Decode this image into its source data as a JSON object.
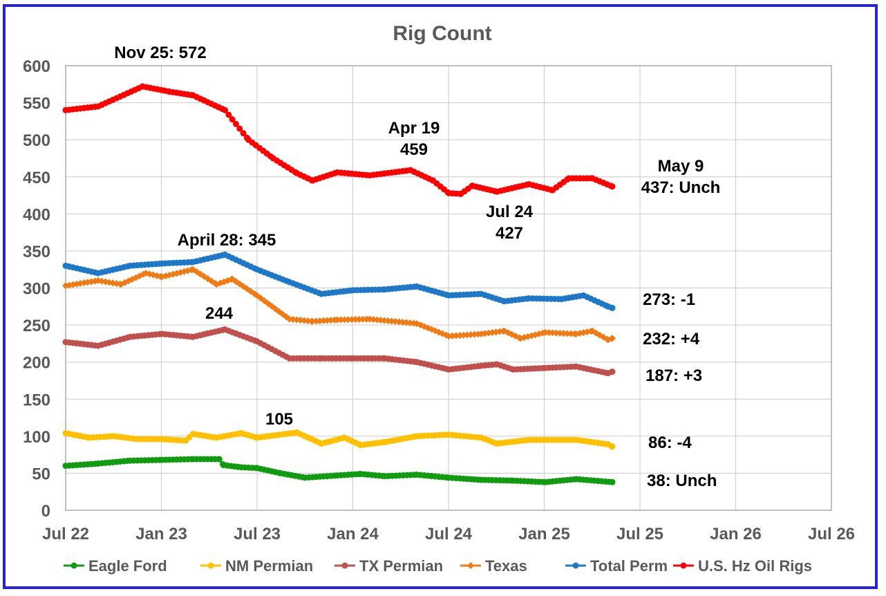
{
  "chart_data": {
    "type": "line",
    "title": "Rig Count",
    "xlabel": "",
    "ylabel": "",
    "x_tick_labels": [
      "Jul 22",
      "Jan 23",
      "Jul 23",
      "Jan 24",
      "Jul 24",
      "Jan 25",
      "Jul 25",
      "Jan 26",
      "Jul 26"
    ],
    "x_range": [
      "2022-07-01",
      "2026-07-01"
    ],
    "ylim": [
      0,
      600
    ],
    "y_ticks": [
      0,
      50,
      100,
      150,
      200,
      250,
      300,
      350,
      400,
      450,
      500,
      550,
      600
    ],
    "grid": true,
    "legend_position": "bottom",
    "series": [
      {
        "name": "Eagle Ford",
        "color": "#119b11",
        "marker": "circle",
        "points": [
          [
            "2022-07-01",
            60
          ],
          [
            "2022-09-01",
            63
          ],
          [
            "2022-11-01",
            67
          ],
          [
            "2023-01-01",
            68
          ],
          [
            "2023-03-01",
            69
          ],
          [
            "2023-04-20",
            69
          ],
          [
            "2023-04-28",
            61
          ],
          [
            "2023-06-01",
            58
          ],
          [
            "2023-07-01",
            57
          ],
          [
            "2023-08-15",
            50
          ],
          [
            "2023-10-01",
            44
          ],
          [
            "2023-12-01",
            47
          ],
          [
            "2024-01-15",
            49
          ],
          [
            "2024-03-01",
            46
          ],
          [
            "2024-05-01",
            48
          ],
          [
            "2024-07-01",
            44
          ],
          [
            "2024-09-01",
            41
          ],
          [
            "2024-11-01",
            40
          ],
          [
            "2025-01-01",
            38
          ],
          [
            "2025-03-01",
            42
          ],
          [
            "2025-05-09",
            38
          ]
        ]
      },
      {
        "name": "NM Permian",
        "color": "#ffc000",
        "marker": "circle",
        "points": [
          [
            "2022-07-01",
            104
          ],
          [
            "2022-08-15",
            98
          ],
          [
            "2022-10-01",
            100
          ],
          [
            "2022-11-15",
            96
          ],
          [
            "2023-01-01",
            96
          ],
          [
            "2023-02-15",
            94
          ],
          [
            "2023-03-01",
            103
          ],
          [
            "2023-04-15",
            98
          ],
          [
            "2023-06-01",
            104
          ],
          [
            "2023-07-01",
            98
          ],
          [
            "2023-09-15",
            105
          ],
          [
            "2023-11-01",
            90
          ],
          [
            "2023-12-15",
            98
          ],
          [
            "2024-01-15",
            88
          ],
          [
            "2024-03-01",
            92
          ],
          [
            "2024-05-01",
            100
          ],
          [
            "2024-07-01",
            102
          ],
          [
            "2024-09-01",
            98
          ],
          [
            "2024-10-01",
            90
          ],
          [
            "2024-12-01",
            95
          ],
          [
            "2025-03-01",
            95
          ],
          [
            "2025-05-01",
            89
          ],
          [
            "2025-05-09",
            86
          ]
        ]
      },
      {
        "name": "TX Permian",
        "color": "#c0504d",
        "marker": "circle",
        "points": [
          [
            "2022-07-01",
            227
          ],
          [
            "2022-09-01",
            222
          ],
          [
            "2022-11-01",
            234
          ],
          [
            "2023-01-01",
            238
          ],
          [
            "2023-03-01",
            234
          ],
          [
            "2023-05-01",
            244
          ],
          [
            "2023-07-01",
            228
          ],
          [
            "2023-09-01",
            205
          ],
          [
            "2023-11-01",
            205
          ],
          [
            "2024-01-01",
            205
          ],
          [
            "2024-03-01",
            205
          ],
          [
            "2024-05-01",
            200
          ],
          [
            "2024-07-01",
            190
          ],
          [
            "2024-09-01",
            195
          ],
          [
            "2024-10-01",
            197
          ],
          [
            "2024-11-01",
            190
          ],
          [
            "2025-01-01",
            192
          ],
          [
            "2025-03-01",
            194
          ],
          [
            "2025-05-01",
            185
          ],
          [
            "2025-05-09",
            187
          ]
        ]
      },
      {
        "name": "Texas",
        "color": "#f07a13",
        "marker": "diamond",
        "points": [
          [
            "2022-07-01",
            303
          ],
          [
            "2022-09-01",
            310
          ],
          [
            "2022-10-15",
            305
          ],
          [
            "2022-12-01",
            320
          ],
          [
            "2023-01-01",
            315
          ],
          [
            "2023-03-01",
            325
          ],
          [
            "2023-04-15",
            305
          ],
          [
            "2023-05-15",
            312
          ],
          [
            "2023-07-01",
            290
          ],
          [
            "2023-09-01",
            258
          ],
          [
            "2023-10-15",
            255
          ],
          [
            "2023-12-01",
            257
          ],
          [
            "2024-02-01",
            258
          ],
          [
            "2024-05-01",
            252
          ],
          [
            "2024-07-01",
            235
          ],
          [
            "2024-09-01",
            238
          ],
          [
            "2024-10-15",
            242
          ],
          [
            "2024-11-15",
            232
          ],
          [
            "2025-01-01",
            240
          ],
          [
            "2025-03-01",
            238
          ],
          [
            "2025-04-01",
            242
          ],
          [
            "2025-05-01",
            230
          ],
          [
            "2025-05-09",
            232
          ]
        ]
      },
      {
        "name": "Total Perm",
        "color": "#1f77c8",
        "marker": "circle",
        "points": [
          [
            "2022-07-01",
            330
          ],
          [
            "2022-09-01",
            320
          ],
          [
            "2022-11-01",
            330
          ],
          [
            "2023-01-01",
            333
          ],
          [
            "2023-03-01",
            335
          ],
          [
            "2023-05-01",
            345
          ],
          [
            "2023-07-01",
            325
          ],
          [
            "2023-09-01",
            308
          ],
          [
            "2023-11-01",
            292
          ],
          [
            "2024-01-01",
            297
          ],
          [
            "2024-03-01",
            298
          ],
          [
            "2024-05-01",
            302
          ],
          [
            "2024-07-01",
            290
          ],
          [
            "2024-09-01",
            292
          ],
          [
            "2024-10-15",
            282
          ],
          [
            "2024-12-01",
            286
          ],
          [
            "2025-02-01",
            285
          ],
          [
            "2025-03-15",
            290
          ],
          [
            "2025-05-01",
            275
          ],
          [
            "2025-05-09",
            273
          ]
        ]
      },
      {
        "name": "U.S. Hz Oil Rigs",
        "color": "#ff0000",
        "marker": "circle",
        "points": [
          [
            "2022-07-01",
            540
          ],
          [
            "2022-09-01",
            545
          ],
          [
            "2022-11-25",
            572
          ],
          [
            "2023-01-15",
            565
          ],
          [
            "2023-03-01",
            560
          ],
          [
            "2023-05-01",
            540
          ],
          [
            "2023-06-15",
            500
          ],
          [
            "2023-08-01",
            475
          ],
          [
            "2023-09-15",
            455
          ],
          [
            "2023-10-15",
            445
          ],
          [
            "2023-12-01",
            456
          ],
          [
            "2024-02-01",
            452
          ],
          [
            "2024-04-19",
            459
          ],
          [
            "2024-06-01",
            445
          ],
          [
            "2024-07-01",
            428
          ],
          [
            "2024-08-15",
            438
          ],
          [
            "2024-07-24",
            427
          ],
          [
            "2024-10-01",
            430
          ],
          [
            "2024-12-01",
            440
          ],
          [
            "2025-01-15",
            432
          ],
          [
            "2025-02-15",
            448
          ],
          [
            "2025-04-01",
            448
          ],
          [
            "2025-05-09",
            437
          ]
        ]
      }
    ],
    "annotations": [
      {
        "text": "Nov 25: 572"
      },
      {
        "text": "Apr 19"
      },
      {
        "text": "459"
      },
      {
        "text": "Jul 24"
      },
      {
        "text": "427"
      },
      {
        "text": "May 9"
      },
      {
        "text": "437: Unch"
      },
      {
        "text": "April 28: 345"
      },
      {
        "text": "244"
      },
      {
        "text": "105"
      },
      {
        "text": "273: -1"
      },
      {
        "text": "232: +4"
      },
      {
        "text": "187: +3"
      },
      {
        "text": "86: -4"
      },
      {
        "text": "38: Unch"
      }
    ]
  }
}
